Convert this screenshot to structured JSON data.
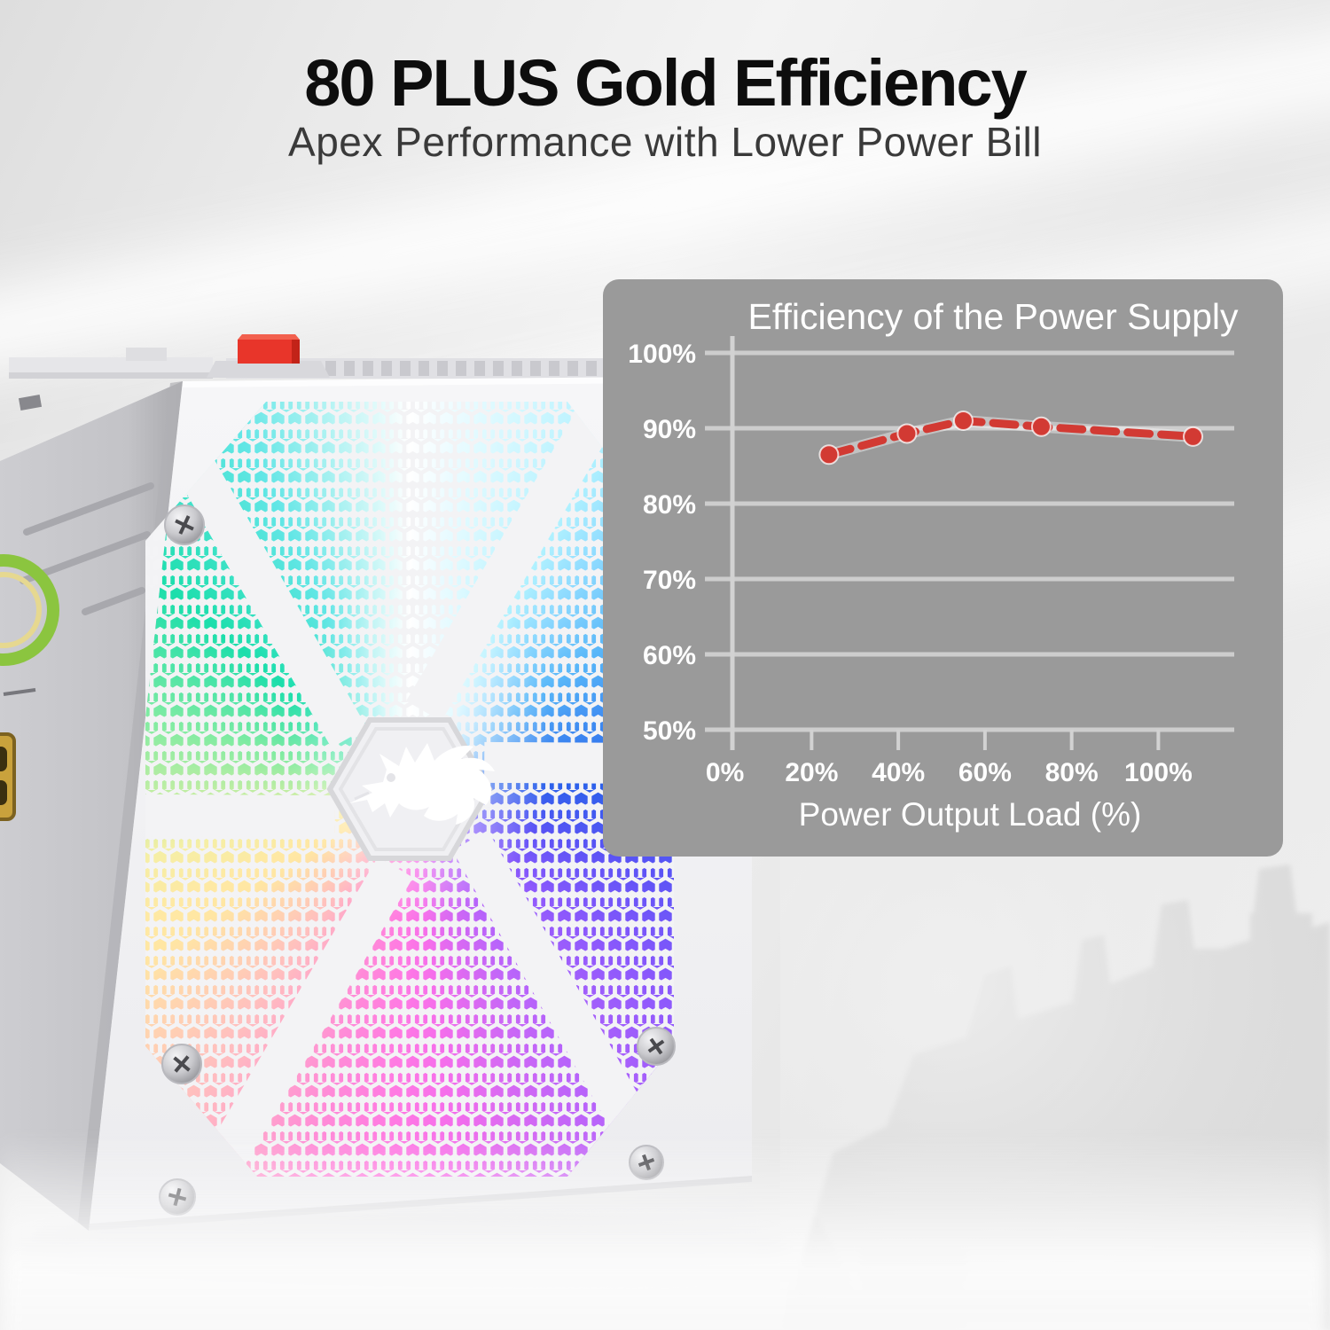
{
  "header": {
    "title": "80 PLUS Gold Efficiency",
    "subtitle": "Apex Performance with Lower Power Bill"
  },
  "chart_data": {
    "type": "line",
    "title": "Efficiency of the Power Supply",
    "xlabel": "Power Output Load (%)",
    "ylabel": "",
    "x_tick_labels": [
      "0%",
      "20%",
      "40%",
      "60%",
      "80%",
      "100%"
    ],
    "x_tick_values": [
      0,
      20,
      40,
      60,
      80,
      100
    ],
    "y_tick_labels": [
      "100%",
      "90%",
      "80%",
      "70%",
      "60%",
      "50%"
    ],
    "y_tick_values": [
      100,
      90,
      80,
      70,
      60,
      50
    ],
    "xlim": [
      0,
      117.5
    ],
    "ylim": [
      50,
      102
    ],
    "grid": "horizontal",
    "legend": "none",
    "series": [
      {
        "name": "Efficiency",
        "color": "#d23a33",
        "style": "dashed-line-with-round-markers",
        "x": [
          24,
          42,
          55,
          73,
          108
        ],
        "y": [
          86.5,
          89.3,
          91.0,
          90.2,
          88.9
        ]
      }
    ]
  },
  "product": {
    "kind": "white ATX power supply with RGB fan",
    "logo_icon": "redragon-dragon-logo",
    "power_switch_color": "#e8352a",
    "visible_parts": [
      "power-switch",
      "ridged-top-edge",
      "hex-mesh-fan-grille",
      "aperture-blades",
      "dragon-logo-badge",
      "corner-screws",
      "side-vents",
      "round-badge-sticker",
      "gold-badge-sticker"
    ]
  },
  "background": {
    "watermark": "misty-castle-silhouette",
    "style": "silver satin gradient with white streaks"
  },
  "colors": {
    "panel_bg": "#9a9a9a",
    "grid": "#cdcdcd",
    "axis": "#d2d2d2",
    "label": "#ffffff",
    "line": "#d23a33",
    "title_text": "#0d0d0d",
    "subtitle_text": "#3a3a3a"
  }
}
